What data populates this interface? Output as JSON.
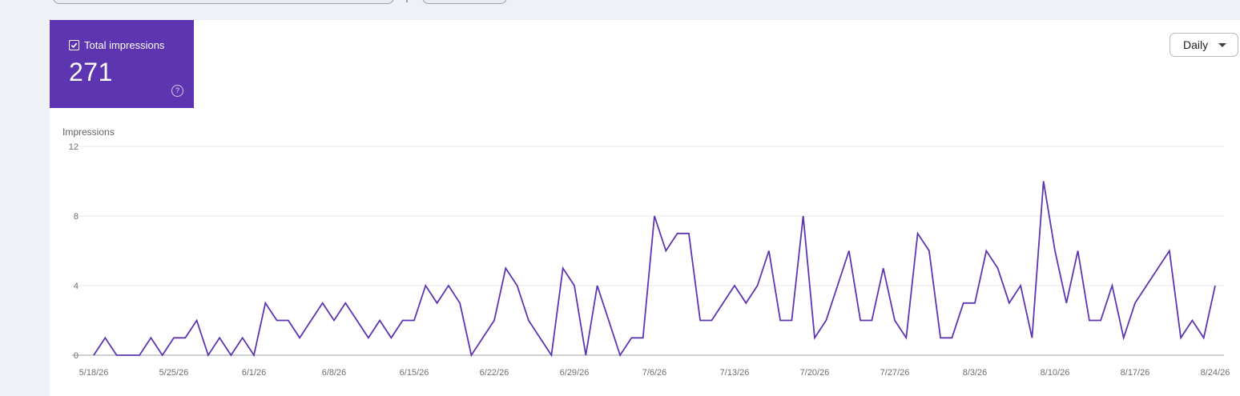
{
  "metric": {
    "label": "Total impressions",
    "value": "271",
    "help_icon": "help-circle-icon",
    "color": "#5e35b1"
  },
  "granularity": {
    "selected": "Daily"
  },
  "chart_data": {
    "type": "line",
    "ylabel": "Impressions",
    "ylim": [
      0,
      12
    ],
    "y_ticks": [
      "0",
      "4",
      "8",
      "12"
    ],
    "x_tick_labels": [
      "5/18/26",
      "5/25/26",
      "6/1/26",
      "6/8/26",
      "6/15/26",
      "6/22/26",
      "6/29/26",
      "7/6/26",
      "7/13/26",
      "7/20/26",
      "7/27/26",
      "8/3/26",
      "8/10/26",
      "8/17/26",
      "8/24/26"
    ],
    "x_start": "5/18/26",
    "x_end": "8/24/26",
    "series": [
      {
        "color": "#5e35b1",
        "values": [
          0,
          1,
          0,
          0,
          0,
          1,
          0,
          1,
          1,
          2,
          0,
          1,
          0,
          1,
          0,
          3,
          2,
          2,
          1,
          2,
          3,
          2,
          3,
          2,
          1,
          2,
          1,
          2,
          2,
          4,
          3,
          4,
          3,
          0,
          1,
          2,
          5,
          4,
          2,
          1,
          0,
          5,
          4,
          0,
          4,
          2,
          0,
          1,
          1,
          8,
          6,
          7,
          7,
          2,
          2,
          3,
          4,
          3,
          4,
          6,
          2,
          2,
          8,
          1,
          2,
          4,
          6,
          2,
          2,
          5,
          2,
          1,
          7,
          6,
          1,
          1,
          3,
          3,
          6,
          5,
          3,
          4,
          1,
          10,
          6,
          3,
          6,
          2,
          2,
          4,
          1,
          3,
          4,
          5,
          6,
          1,
          2,
          1,
          4
        ]
      }
    ]
  }
}
